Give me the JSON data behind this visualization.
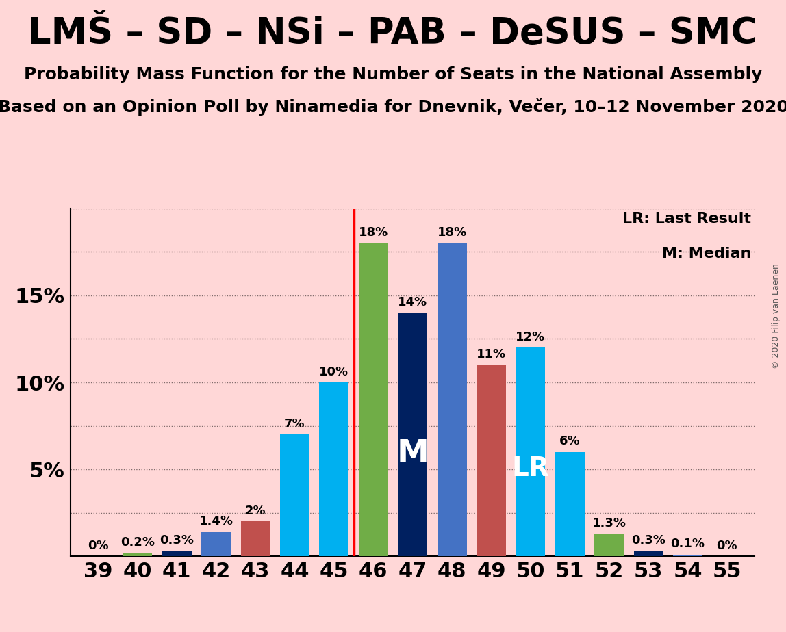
{
  "title": "LMŠ – SD – NSi – PAB – DeSUS – SMC",
  "subtitle1": "Probability Mass Function for the Number of Seats in the National Assembly",
  "subtitle2": "Based on an Opinion Poll by Ninamedia for Dnevnik, Večer, 10–12 November 2020",
  "copyright": "© 2020 Filip van Laenen",
  "note1": "LR: Last Result",
  "note2": "M: Median",
  "seats": [
    39,
    40,
    41,
    42,
    43,
    44,
    45,
    46,
    47,
    48,
    49,
    50,
    51,
    52,
    53,
    54,
    55
  ],
  "values": [
    0.0,
    0.2,
    0.3,
    1.4,
    2.0,
    7.0,
    10.0,
    18.0,
    14.0,
    18.0,
    11.0,
    12.0,
    6.0,
    1.3,
    0.3,
    0.1,
    0.0
  ],
  "seat_colors": {
    "39": "#4472c4",
    "40": "#70ad47",
    "41": "#002060",
    "42": "#4472c4",
    "43": "#c0504d",
    "44": "#00b0f0",
    "45": "#00b0f0",
    "46": "#70ad47",
    "47": "#002060",
    "48": "#4472c4",
    "49": "#c0504d",
    "50": "#00b0f0",
    "51": "#00b0f0",
    "52": "#70ad47",
    "53": "#002060",
    "54": "#4472c4",
    "55": "#4472c4"
  },
  "median_seat": 47,
  "lr_seat": 50,
  "vline_x": 45.5,
  "background_color": "#ffd7d7",
  "ylim_max": 20,
  "title_fontsize": 38,
  "subtitle_fontsize": 18,
  "tick_fontsize": 22,
  "bar_label_fontsize": 13,
  "note_fontsize": 16,
  "median_label_fontsize": 34,
  "lr_label_fontsize": 28,
  "copyright_fontsize": 9
}
